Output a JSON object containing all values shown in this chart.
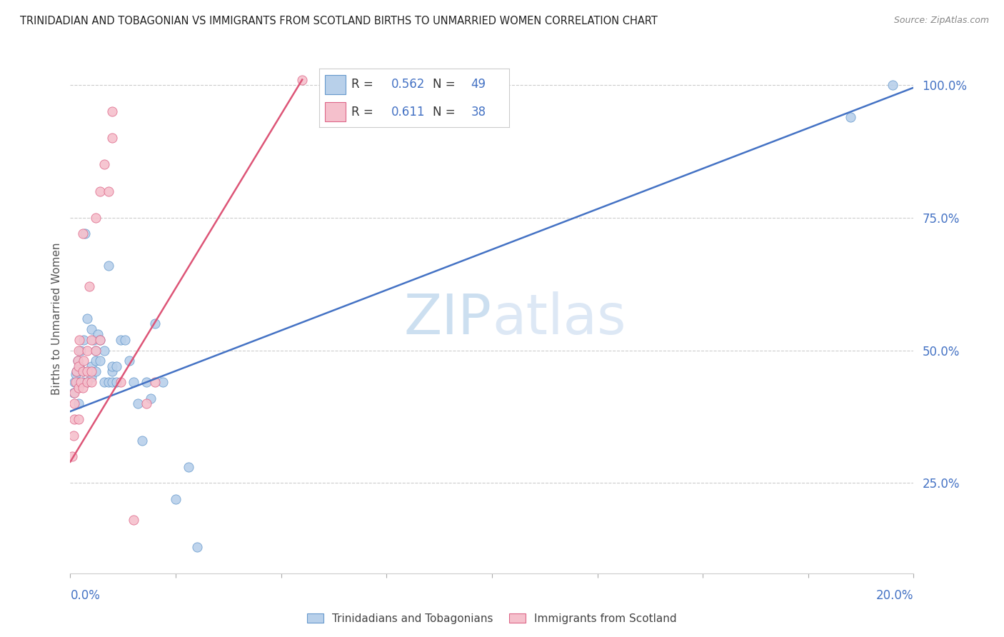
{
  "title": "TRINIDADIAN AND TOBAGONIAN VS IMMIGRANTS FROM SCOTLAND BIRTHS TO UNMARRIED WOMEN CORRELATION CHART",
  "source": "Source: ZipAtlas.com",
  "ylabel_label": "Births to Unmarried Women",
  "yticks": [
    0.25,
    0.5,
    0.75,
    1.0
  ],
  "ytick_labels": [
    "25.0%",
    "50.0%",
    "75.0%",
    "100.0%"
  ],
  "xmin": 0.0,
  "xmax": 0.2,
  "ymin": 0.08,
  "ymax": 1.04,
  "watermark_zip": "ZIP",
  "watermark_atlas": "atlas",
  "series": [
    {
      "name": "Trinidadians and Tobagonians",
      "R": "0.562",
      "N": "49",
      "dot_color": "#b8d0ea",
      "dot_edge": "#6699cc",
      "line_color": "#4472c4",
      "trend_x": [
        0.0,
        0.2
      ],
      "trend_y": [
        0.385,
        0.995
      ],
      "x": [
        0.0008,
        0.001,
        0.0012,
        0.0015,
        0.0018,
        0.002,
        0.002,
        0.0022,
        0.0025,
        0.003,
        0.003,
        0.0032,
        0.0035,
        0.004,
        0.004,
        0.005,
        0.005,
        0.005,
        0.0055,
        0.006,
        0.006,
        0.006,
        0.0065,
        0.007,
        0.007,
        0.008,
        0.008,
        0.009,
        0.009,
        0.01,
        0.01,
        0.01,
        0.011,
        0.011,
        0.012,
        0.013,
        0.014,
        0.015,
        0.016,
        0.017,
        0.018,
        0.019,
        0.02,
        0.022,
        0.025,
        0.028,
        0.03,
        0.185,
        0.195
      ],
      "y": [
        0.42,
        0.44,
        0.455,
        0.46,
        0.48,
        0.4,
        0.44,
        0.47,
        0.5,
        0.44,
        0.46,
        0.52,
        0.72,
        0.44,
        0.56,
        0.45,
        0.47,
        0.54,
        0.52,
        0.46,
        0.48,
        0.5,
        0.53,
        0.48,
        0.52,
        0.44,
        0.5,
        0.66,
        0.44,
        0.44,
        0.46,
        0.47,
        0.44,
        0.47,
        0.52,
        0.52,
        0.48,
        0.44,
        0.4,
        0.33,
        0.44,
        0.41,
        0.55,
        0.44,
        0.22,
        0.28,
        0.13,
        0.94,
        1.0
      ]
    },
    {
      "name": "Immigrants from Scotland",
      "R": "0.611",
      "N": "38",
      "dot_color": "#f5c0cc",
      "dot_edge": "#dd6688",
      "line_color": "#dd5577",
      "trend_x": [
        0.0,
        0.055
      ],
      "trend_y": [
        0.29,
        1.01
      ],
      "x": [
        0.0005,
        0.0008,
        0.001,
        0.001,
        0.001,
        0.0012,
        0.0015,
        0.0018,
        0.002,
        0.002,
        0.002,
        0.002,
        0.0022,
        0.0025,
        0.003,
        0.003,
        0.003,
        0.0032,
        0.004,
        0.004,
        0.004,
        0.0045,
        0.005,
        0.005,
        0.005,
        0.006,
        0.006,
        0.007,
        0.007,
        0.008,
        0.009,
        0.01,
        0.01,
        0.012,
        0.015,
        0.018,
        0.02,
        0.055
      ],
      "y": [
        0.3,
        0.34,
        0.37,
        0.4,
        0.42,
        0.44,
        0.46,
        0.48,
        0.37,
        0.43,
        0.47,
        0.5,
        0.52,
        0.44,
        0.43,
        0.46,
        0.72,
        0.48,
        0.44,
        0.46,
        0.5,
        0.62,
        0.44,
        0.46,
        0.52,
        0.5,
        0.75,
        0.8,
        0.52,
        0.85,
        0.8,
        0.9,
        0.95,
        0.44,
        0.18,
        0.4,
        0.44,
        1.01
      ]
    }
  ],
  "legend_R1": "0.562",
  "legend_N1": "49",
  "legend_R2": "0.611",
  "legend_N2": "38",
  "background_color": "#ffffff",
  "grid_color": "#cccccc",
  "title_color": "#222222",
  "axis_color": "#4472c4",
  "source_color": "#888888"
}
